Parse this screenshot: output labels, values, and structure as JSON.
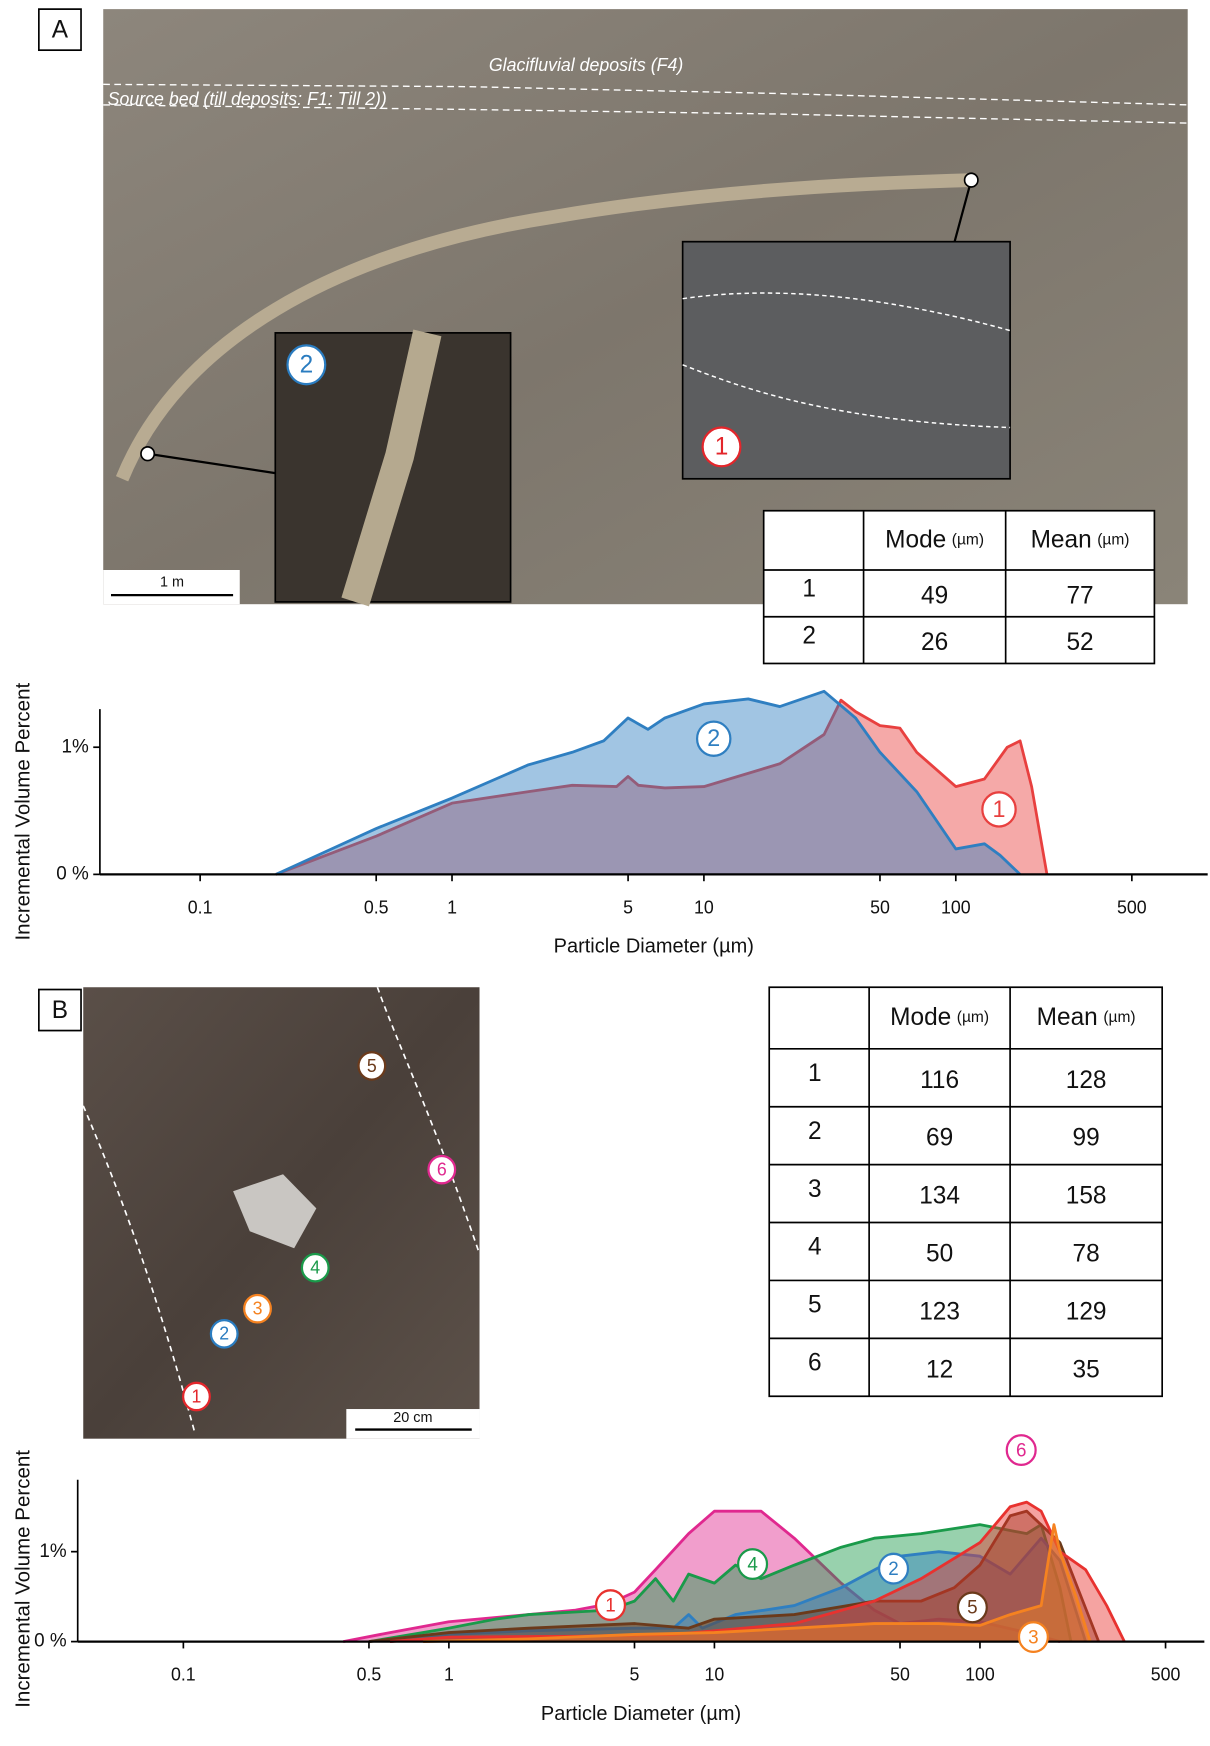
{
  "panel_a": {
    "label": "A",
    "photo": {
      "annotations": [
        "Glacifluvial deposits (F4)",
        "Source bed (till deposits: F1: Till 2))"
      ],
      "scale_bar": "1 m",
      "markers": [
        {
          "label": "2",
          "color": "#2a7cc0"
        },
        {
          "label": "1",
          "color": "#e3262b"
        }
      ]
    },
    "table": {
      "header": [
        {
          "text": "Mode",
          "unit": "(µm)"
        },
        {
          "text": "Mean",
          "unit": "(µm)"
        }
      ],
      "rows": [
        [
          1,
          49,
          77
        ],
        [
          2,
          26,
          52
        ]
      ]
    }
  },
  "panel_b": {
    "label": "B",
    "photo": {
      "scale_bar": "20 cm",
      "markers": [
        {
          "label": "1",
          "color": "#e3262b"
        },
        {
          "label": "2",
          "color": "#2a7cc0"
        },
        {
          "label": "3",
          "color": "#f58220"
        },
        {
          "label": "4",
          "color": "#1a9a4a"
        },
        {
          "label": "5",
          "color": "#6b3a1b"
        },
        {
          "label": "6",
          "color": "#e0288f"
        }
      ]
    },
    "table": {
      "header": [
        {
          "text": "Mode",
          "unit": "(µm)"
        },
        {
          "text": "Mean",
          "unit": "(µm)"
        }
      ],
      "rows": [
        [
          1,
          116,
          128
        ],
        [
          2,
          69,
          99
        ],
        [
          3,
          134,
          158
        ],
        [
          4,
          50,
          78
        ],
        [
          5,
          123,
          129
        ],
        [
          6,
          12,
          35
        ]
      ]
    }
  },
  "chart_data": [
    {
      "type": "area",
      "x_label": "Particle Diameter (µm)",
      "y_label": "Incremental Volume Percent",
      "xlog": true,
      "xlim": [
        0.04,
        1000
      ],
      "ylim": [
        0,
        1.3
      ],
      "xticks": [
        0.1,
        0.5,
        1,
        5,
        10,
        50,
        100,
        500
      ],
      "yticks": [
        {
          "value": 0,
          "label": "0 %"
        },
        {
          "value": 1,
          "label": "1%"
        }
      ],
      "series": [
        {
          "name": "1",
          "color": "#e8403f",
          "x": [
            0.2,
            0.5,
            1,
            2,
            3,
            4.5,
            5,
            5.5,
            7,
            10,
            20,
            30,
            35,
            40,
            50,
            60,
            70,
            100,
            130,
            160,
            180,
            200,
            230
          ],
          "values": [
            0,
            0.3,
            0.56,
            0.65,
            0.7,
            0.69,
            0.77,
            0.7,
            0.68,
            0.69,
            0.87,
            1.1,
            1.37,
            1.28,
            1.17,
            1.15,
            0.96,
            0.69,
            0.75,
            1.0,
            1.05,
            0.69,
            0
          ]
        },
        {
          "name": "2",
          "color": "#2f7fc1",
          "x": [
            0.2,
            0.5,
            1,
            2,
            3,
            4,
            5,
            6,
            7,
            10,
            15,
            20,
            30,
            40,
            50,
            70,
            100,
            130,
            150,
            180
          ],
          "values": [
            0,
            0.36,
            0.6,
            0.86,
            0.96,
            1.05,
            1.23,
            1.14,
            1.23,
            1.34,
            1.38,
            1.32,
            1.44,
            1.23,
            0.96,
            0.65,
            0.2,
            0.24,
            0.15,
            0
          ]
        }
      ]
    },
    {
      "type": "area",
      "x_label": "Particle Diameter (µm)",
      "y_label": "Incremental Volume Percent",
      "xlog": true,
      "xlim": [
        0.04,
        700
      ],
      "ylim": [
        0,
        1.8
      ],
      "xticks": [
        0.1,
        0.5,
        1,
        5,
        10,
        50,
        100,
        500
      ],
      "yticks": [
        {
          "value": 0,
          "label": "0 %"
        },
        {
          "value": 1,
          "label": "1%"
        }
      ],
      "series": [
        {
          "name": "6",
          "color": "#e0288f",
          "x": [
            0.4,
            0.6,
            1,
            2,
            3,
            4,
            5,
            6,
            8,
            10,
            15,
            20,
            30,
            40,
            50,
            70,
            100,
            150,
            200
          ],
          "values": [
            0,
            0.1,
            0.22,
            0.3,
            0.35,
            0.42,
            0.55,
            0.8,
            1.2,
            1.45,
            1.45,
            1.15,
            0.65,
            0.35,
            0.2,
            0.25,
            0.22,
            0.1,
            0
          ]
        },
        {
          "name": "4",
          "color": "#1a9a4a",
          "x": [
            0.5,
            0.8,
            1,
            1.5,
            2,
            4,
            5,
            6,
            7,
            8,
            10,
            12,
            15,
            20,
            30,
            40,
            60,
            100,
            150,
            170,
            200,
            220
          ],
          "values": [
            0,
            0.1,
            0.15,
            0.25,
            0.3,
            0.35,
            0.45,
            0.7,
            0.45,
            0.75,
            0.65,
            0.85,
            0.7,
            0.85,
            1.05,
            1.15,
            1.2,
            1.3,
            1.2,
            1.3,
            0.6,
            0
          ]
        },
        {
          "name": "2",
          "color": "#2f7fc1",
          "x": [
            0.6,
            1,
            2,
            5,
            7,
            8,
            9,
            12,
            20,
            30,
            50,
            70,
            100,
            130,
            170,
            200,
            250
          ],
          "values": [
            0,
            0.08,
            0.12,
            0.15,
            0.15,
            0.3,
            0.15,
            0.3,
            0.4,
            0.6,
            0.95,
            1.0,
            0.95,
            0.75,
            1.15,
            0.9,
            0
          ]
        },
        {
          "name": "5",
          "color": "#6b3a1b",
          "x": [
            0.5,
            1,
            2,
            5,
            8,
            10,
            20,
            40,
            60,
            80,
            100,
            130,
            150,
            200,
            280
          ],
          "values": [
            0,
            0.1,
            0.15,
            0.2,
            0.15,
            0.25,
            0.3,
            0.45,
            0.45,
            0.6,
            0.85,
            1.4,
            1.45,
            1.1,
            0
          ]
        },
        {
          "name": "1",
          "color": "#e8322f",
          "x": [
            0.6,
            1,
            3,
            7,
            10,
            20,
            40,
            60,
            100,
            130,
            150,
            170,
            200,
            250,
            300,
            350
          ],
          "values": [
            0,
            0.05,
            0.06,
            0.08,
            0.12,
            0.2,
            0.45,
            0.7,
            1.1,
            1.5,
            1.55,
            1.45,
            1.0,
            0.8,
            0.4,
            0
          ]
        },
        {
          "name": "3",
          "color": "#f58220",
          "x": [
            0.8,
            2,
            5,
            10,
            20,
            40,
            70,
            100,
            130,
            170,
            190,
            200,
            230,
            260
          ],
          "values": [
            0,
            0.03,
            0.08,
            0.1,
            0.15,
            0.2,
            0.2,
            0.18,
            0.3,
            0.4,
            1.3,
            1.0,
            0.5,
            0
          ]
        }
      ]
    }
  ]
}
